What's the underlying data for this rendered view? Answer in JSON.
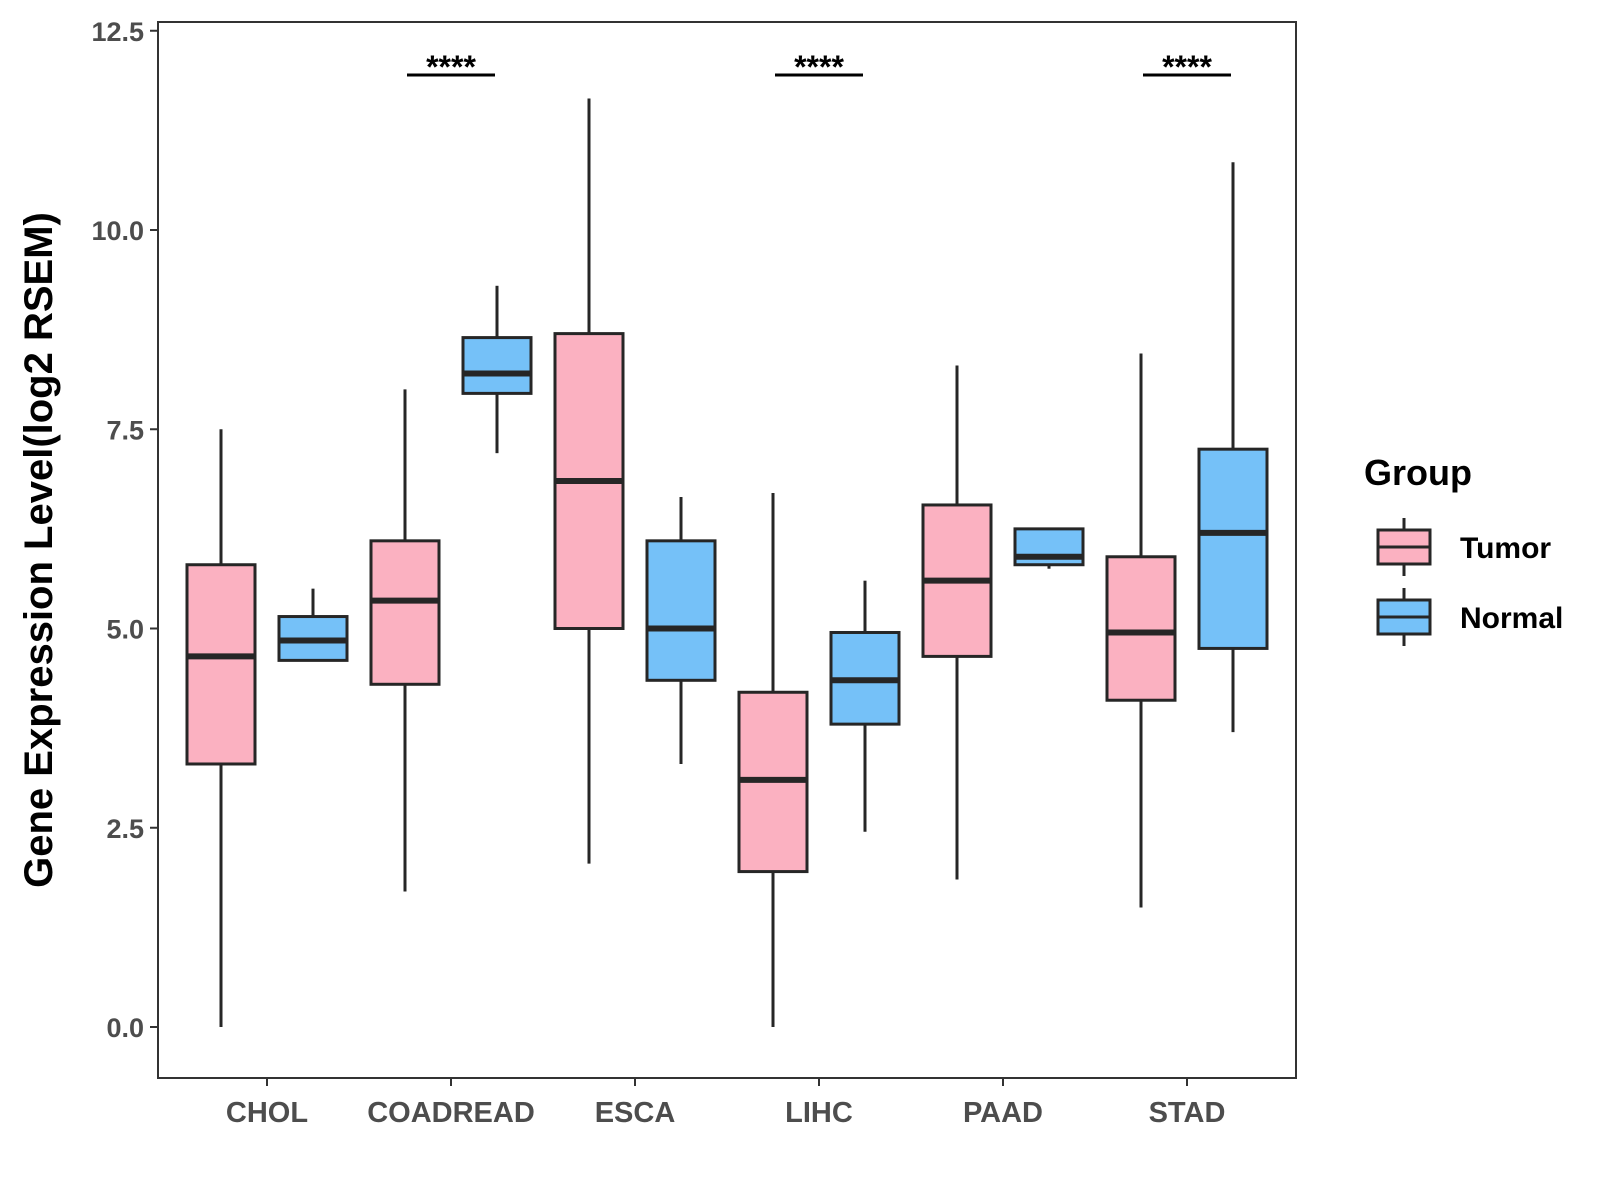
{
  "chart_data": {
    "type": "boxplot",
    "title": "",
    "xlabel": "",
    "ylabel": "Gene Expression Level(log2 RSEM)",
    "ylim": [
      -0.75,
      12.6
    ],
    "yticks": [
      0.0,
      2.5,
      5.0,
      7.5,
      10.0,
      12.5
    ],
    "ytick_labels": [
      "0.0",
      "2.5",
      "5.0",
      "7.5",
      "10.0",
      "12.5"
    ],
    "categories": [
      "CHOL",
      "COADREAD",
      "ESCA",
      "LIHC",
      "PAAD",
      "STAD"
    ],
    "series": [
      {
        "name": "Tumor",
        "color": "#FBB1C1",
        "boxes": [
          {
            "whisker_low": 0.0,
            "q1": 3.3,
            "median": 4.65,
            "q3": 5.8,
            "whisker_high": 7.5
          },
          {
            "whisker_low": 1.7,
            "q1": 4.3,
            "median": 5.35,
            "q3": 6.1,
            "whisker_high": 8.0
          },
          {
            "whisker_low": 2.05,
            "q1": 5.0,
            "median": 6.85,
            "q3": 8.7,
            "whisker_high": 11.65
          },
          {
            "whisker_low": 0.0,
            "q1": 1.95,
            "median": 3.1,
            "q3": 4.2,
            "whisker_high": 6.7
          },
          {
            "whisker_low": 1.85,
            "q1": 4.65,
            "median": 5.6,
            "q3": 6.55,
            "whisker_high": 8.3
          },
          {
            "whisker_low": 1.5,
            "q1": 4.1,
            "median": 4.95,
            "q3": 5.9,
            "whisker_high": 8.45
          }
        ]
      },
      {
        "name": "Normal",
        "color": "#75C1F8",
        "boxes": [
          {
            "whisker_low": 4.6,
            "q1": 4.6,
            "median": 4.85,
            "q3": 5.15,
            "whisker_high": 5.5
          },
          {
            "whisker_low": 7.2,
            "q1": 7.95,
            "median": 8.2,
            "q3": 8.65,
            "whisker_high": 9.3
          },
          {
            "whisker_low": 3.3,
            "q1": 4.35,
            "median": 5.0,
            "q3": 6.1,
            "whisker_high": 6.65
          },
          {
            "whisker_low": 2.45,
            "q1": 3.8,
            "median": 4.35,
            "q3": 4.95,
            "whisker_high": 5.6
          },
          {
            "whisker_low": 5.75,
            "q1": 5.8,
            "median": 5.9,
            "q3": 6.25,
            "whisker_high": 6.25
          },
          {
            "whisker_low": 3.7,
            "q1": 4.75,
            "median": 6.2,
            "q3": 7.25,
            "whisker_high": 10.85
          }
        ]
      }
    ],
    "significance": [
      {
        "category": "CHOL",
        "label": ""
      },
      {
        "category": "COADREAD",
        "label": "****"
      },
      {
        "category": "ESCA",
        "label": ""
      },
      {
        "category": "LIHC",
        "label": "****"
      },
      {
        "category": "PAAD",
        "label": ""
      },
      {
        "category": "STAD",
        "label": "****"
      }
    ],
    "legend": {
      "title": "Group",
      "position": "right",
      "entries": [
        "Tumor",
        "Normal"
      ]
    },
    "grid": false
  }
}
